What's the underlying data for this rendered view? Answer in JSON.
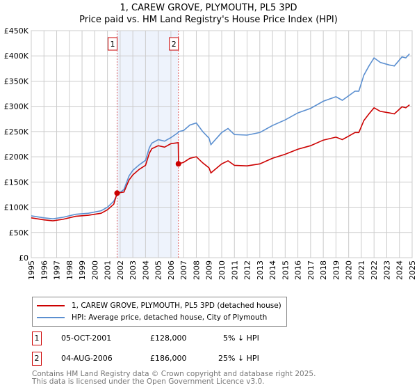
{
  "chart_data": {
    "type": "line",
    "title": "1, CAREW GROVE, PLYMOUTH, PL5 3PD",
    "subtitle": "Price paid vs. HM Land Registry's House Price Index (HPI)",
    "xlim": [
      1995,
      2025
    ],
    "ylim": [
      0,
      450000
    ],
    "x_ticks": [
      "1995",
      "1996",
      "1997",
      "1998",
      "1999",
      "2000",
      "2001",
      "2002",
      "2003",
      "2004",
      "2005",
      "2006",
      "2007",
      "2008",
      "2009",
      "2010",
      "2011",
      "2012",
      "2013",
      "2014",
      "2015",
      "2016",
      "2017",
      "2018",
      "2019",
      "2020",
      "2021",
      "2022",
      "2023",
      "2024",
      "2025"
    ],
    "y_ticks": [
      {
        "v": 0,
        "l": "£0"
      },
      {
        "v": 50000,
        "l": "£50K"
      },
      {
        "v": 100000,
        "l": "£100K"
      },
      {
        "v": 150000,
        "l": "£150K"
      },
      {
        "v": 200000,
        "l": "£200K"
      },
      {
        "v": 250000,
        "l": "£250K"
      },
      {
        "v": 300000,
        "l": "£300K"
      },
      {
        "v": 350000,
        "l": "£350K"
      },
      {
        "v": 400000,
        "l": "£400K"
      },
      {
        "v": 450000,
        "l": "£450K"
      }
    ],
    "grid": true,
    "x": [
      1995,
      1996,
      1996.7,
      1997.5,
      1998.5,
      1999.5,
      2000.5,
      2001,
      2001.5,
      2001.76,
      2002.3,
      2002.7,
      2003,
      2003.5,
      2004,
      2004.3,
      2004.5,
      2005,
      2005.5,
      2006,
      2006.58,
      2006.6,
      2007,
      2007.5,
      2008,
      2008.5,
      2009,
      2009.15,
      2010,
      2010.5,
      2011,
      2012,
      2013,
      2014,
      2015,
      2016,
      2017,
      2018,
      2019,
      2019.5,
      2020,
      2020.5,
      2020.8,
      2021.2,
      2021.6,
      2022,
      2022.5,
      2023.2,
      2023.6,
      2024.2,
      2024.5,
      2024.8
    ],
    "series": [
      {
        "name": "1, CAREW GROVE, PLYMOUTH, PL5 3PD (detached house)",
        "color": "#cc0000",
        "values": [
          79,
          75,
          73,
          76,
          82,
          84,
          88,
          95,
          106,
          128,
          130,
          154,
          164,
          175,
          183,
          207,
          216,
          222,
          219,
          226,
          228,
          186,
          189,
          197,
          200,
          188,
          178,
          168,
          186,
          192,
          183,
          182,
          186,
          197,
          205,
          215,
          222,
          233,
          239,
          234,
          241,
          248,
          248,
          272,
          285,
          297,
          290,
          287,
          285,
          299,
          297,
          303
        ]
      },
      {
        "name": "HPI: Average price, detached house, City of Plymouth",
        "color": "#5b8fd0",
        "values": [
          83,
          79,
          77,
          80,
          86,
          88,
          93,
          100,
          112,
          125,
          135,
          162,
          173,
          184,
          193,
          218,
          227,
          234,
          231,
          238,
          248,
          250,
          252,
          263,
          267,
          250,
          237,
          224,
          248,
          256,
          244,
          243,
          248,
          262,
          273,
          287,
          296,
          310,
          319,
          312,
          321,
          330,
          330,
          362,
          380,
          396,
          387,
          382,
          380,
          398,
          396,
          404
        ]
      }
    ],
    "value_unit": "£K",
    "sales": [
      {
        "id": "1",
        "x": 2001.76,
        "price": 128000,
        "date": "05-OCT-2001",
        "price_label": "£128,000",
        "hpi": "5% ↓ HPI"
      },
      {
        "id": "2",
        "x": 2006.59,
        "price": 186000,
        "date": "04-AUG-2006",
        "price_label": "£186,000",
        "hpi": "25% ↓ HPI"
      }
    ],
    "legend_position": "bottom"
  },
  "footer": {
    "line1": "Contains HM Land Registry data © Crown copyright and database right 2025.",
    "line2": "This data is licensed under the Open Government Licence v3.0."
  }
}
